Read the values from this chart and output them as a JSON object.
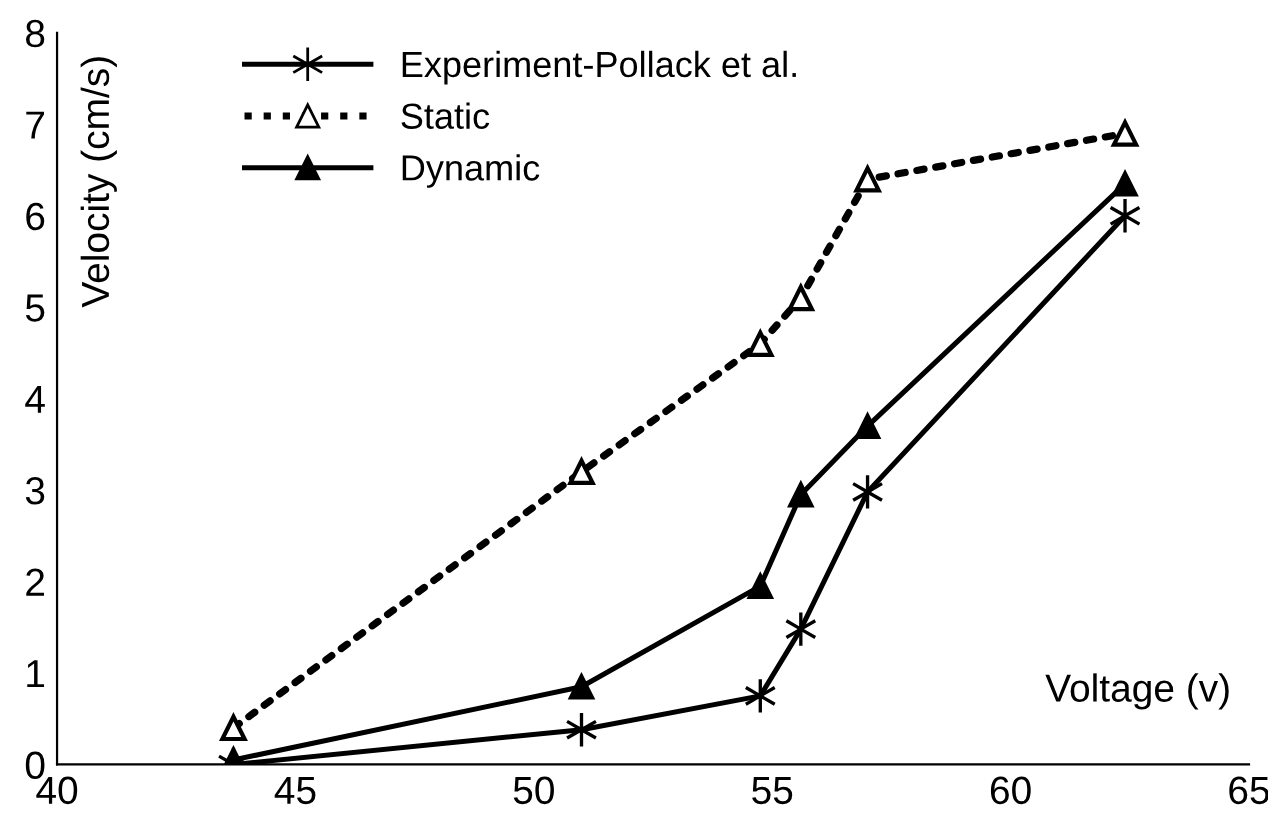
{
  "chart_data": {
    "type": "line",
    "xlabel": "Voltage (v)",
    "ylabel": "Velocity (cm/s)",
    "xlim": [
      40,
      65
    ],
    "xticks": [
      40,
      45,
      50,
      55,
      60,
      65
    ],
    "ylim": [
      0,
      8
    ],
    "yticks": [
      0,
      1,
      2,
      3,
      4,
      5,
      6,
      7,
      8
    ],
    "grid": false,
    "legend": "top left",
    "series": [
      {
        "name": "Experiment-Pollack et al.",
        "color": "#000000",
        "marker": "cross",
        "line_style": "solid",
        "x": [
          43.7,
          51.0,
          54.75,
          55.6,
          57.0,
          62.4
        ],
        "values": [
          0,
          0.38,
          0.75,
          1.48,
          2.98,
          6.0
        ]
      },
      {
        "name": "Static",
        "color": "#000000",
        "marker": "triangle",
        "line_style": "dotted",
        "x": [
          43.7,
          51.0,
          54.75,
          55.6,
          57.0,
          62.4
        ],
        "values": [
          0.4,
          3.2,
          4.6,
          5.1,
          6.4,
          6.9
        ]
      },
      {
        "name": "Dynamic",
        "color": "#000000",
        "marker": "triangle",
        "line_style": "solid",
        "x": [
          43.7,
          51.0,
          54.75,
          55.6,
          57.0,
          62.4
        ],
        "values": [
          0.05,
          0.85,
          1.95,
          2.95,
          3.7,
          6.35
        ]
      }
    ]
  }
}
